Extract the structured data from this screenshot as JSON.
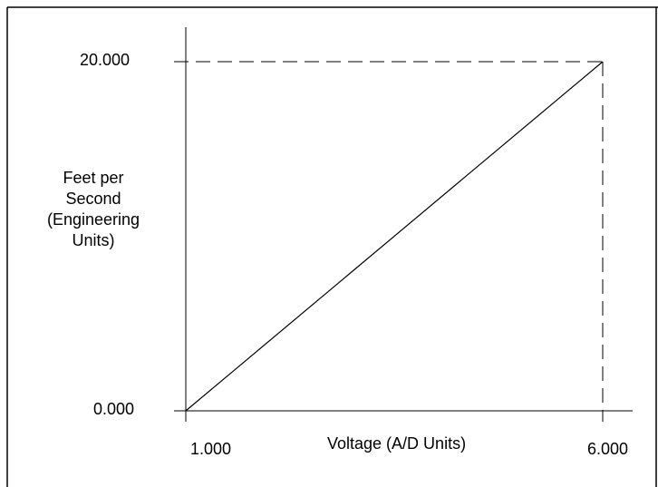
{
  "chart_data": {
    "type": "line",
    "title": "",
    "xlabel": "Voltage (A/D Units)",
    "ylabel_lines": [
      "Feet per",
      "Second",
      "(Engineering",
      "Units)"
    ],
    "xlim": [
      1.0,
      6.0
    ],
    "ylim": [
      0.0,
      20.0
    ],
    "x_tick_labels": [
      "1.000",
      "6.000"
    ],
    "y_tick_labels": [
      "20.000",
      "0.000"
    ],
    "series": [
      {
        "x": [
          1.0,
          6.0
        ],
        "y": [
          0.0,
          20.0
        ]
      }
    ],
    "guides": {
      "style": "dashed",
      "horizontal_at_y": 20.0,
      "vertical_at_x": 6.0
    },
    "grid": false,
    "legend": "none",
    "colors": {
      "line": "#000000",
      "background": "#ffffff"
    }
  }
}
